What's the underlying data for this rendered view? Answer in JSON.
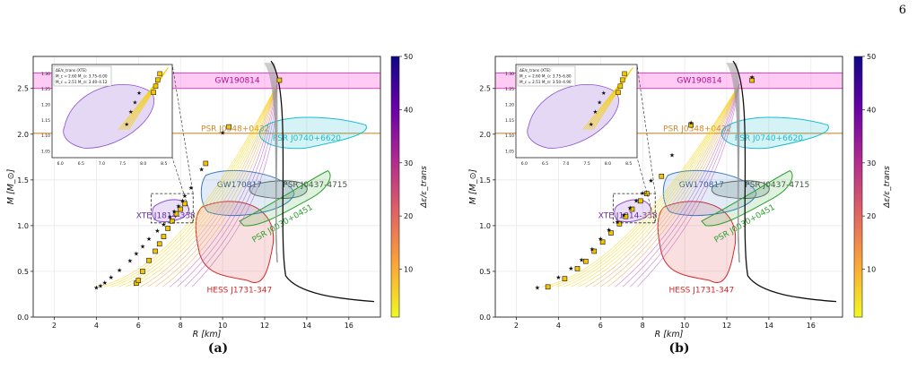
{
  "page_number": "6",
  "panels": [
    {
      "label": "(a)"
    },
    {
      "label": "(b)"
    }
  ],
  "colors": {
    "gw190814_band": "#ff66e0",
    "j0348_line": "#d08a2c",
    "j0740": "#17becf",
    "gw170817": "#3a78c2",
    "j0437": "#2ca02c",
    "j0030": "#2ca02c",
    "xte": "#8a4fd0",
    "hess": "#d62728",
    "grey_bundle": "#9a9a9a",
    "markers": "#f5c400"
  },
  "chart_data": [
    {
      "panel": "(a)",
      "type": "scatter",
      "xlabel": "R [km]",
      "ylabel": "M [M_⊙]",
      "xlim": [
        1,
        17.5
      ],
      "ylim": [
        0,
        2.85
      ],
      "xticks": [
        2,
        4,
        6,
        8,
        10,
        12,
        14,
        16
      ],
      "yticks": [
        0.0,
        0.5,
        1.0,
        1.5,
        2.0,
        2.5
      ],
      "grid": true,
      "colorbar": {
        "label": "Δε/ε_trans",
        "ticks": [
          10,
          20,
          30,
          40,
          50
        ],
        "range": [
          1,
          50
        ]
      },
      "constraints": [
        "GW190814",
        "PSR J0348+0432",
        "PSR J0740+6620",
        "GW170817",
        "PSR J0437-4715",
        "PSR J0030+0451",
        "XTE J1814-338",
        "HESS J1731-347"
      ],
      "inset": {
        "legend": [
          "ΔE/ε_trans (XTE)",
          "M_c = 2.60 M_⊙: 3.75–6.00",
          "M_c = 2.51 M_⊙: 3.40–4.12"
        ],
        "xticks": [
          6.0,
          6.5,
          7.0,
          7.5,
          8.0,
          8.5
        ],
        "yticks": [
          1.05,
          1.1,
          1.15,
          1.2,
          1.25,
          1.3
        ]
      },
      "stars": [
        [
          4.0,
          0.33
        ],
        [
          4.2,
          0.35
        ],
        [
          4.4,
          0.38
        ],
        [
          4.7,
          0.44
        ],
        [
          5.1,
          0.52
        ],
        [
          5.6,
          0.62
        ],
        [
          5.9,
          0.7
        ],
        [
          6.2,
          0.78
        ],
        [
          6.5,
          0.86
        ],
        [
          6.9,
          0.95
        ],
        [
          7.2,
          1.02
        ],
        [
          7.5,
          1.1
        ],
        [
          7.7,
          1.16
        ],
        [
          7.9,
          1.22
        ],
        [
          8.1,
          1.28
        ],
        [
          8.2,
          1.33
        ],
        [
          8.5,
          1.42
        ],
        [
          9.0,
          1.62
        ],
        [
          10.0,
          2.02
        ]
      ],
      "squares": [
        [
          5.9,
          0.37
        ],
        [
          6.0,
          0.4
        ],
        [
          6.2,
          0.5
        ],
        [
          6.5,
          0.62
        ],
        [
          6.8,
          0.72
        ],
        [
          7.0,
          0.8
        ],
        [
          7.2,
          0.88
        ],
        [
          7.4,
          0.97
        ],
        [
          7.6,
          1.05
        ],
        [
          7.8,
          1.13
        ],
        [
          8.0,
          1.18
        ],
        [
          8.2,
          1.24
        ],
        [
          9.2,
          1.68
        ],
        [
          10.3,
          2.08
        ],
        [
          12.7,
          2.59
        ]
      ]
    },
    {
      "panel": "(b)",
      "type": "scatter",
      "xlabel": "R [km]",
      "ylabel": "M [M_⊙]",
      "xlim": [
        1,
        17.5
      ],
      "ylim": [
        0,
        2.85
      ],
      "xticks": [
        2,
        4,
        6,
        8,
        10,
        12,
        14,
        16
      ],
      "yticks": [
        0.0,
        0.5,
        1.0,
        1.5,
        2.0,
        2.5
      ],
      "grid": true,
      "colorbar": {
        "label": "Δε/ε_trans",
        "ticks": [
          10,
          20,
          30,
          40,
          50
        ],
        "range": [
          1,
          50
        ]
      },
      "constraints": [
        "GW190814",
        "PSR J0348+0432",
        "PSR J0740+6620",
        "GW170817",
        "PSR J0437-4715",
        "PSR J0030+0451",
        "XTE J1814-338",
        "HESS J1731-347"
      ],
      "inset": {
        "legend": [
          "ΔE/ε_trans (XTE)",
          "M_c = 2.60 M_⊙: 3.75–6.80",
          "M_c = 2.51 M_⊙: 3.50–4.90"
        ],
        "xticks": [
          6.0,
          6.5,
          7.0,
          7.5,
          8.0,
          8.5
        ],
        "yticks": [
          1.05,
          1.1,
          1.15,
          1.2,
          1.25,
          1.3
        ]
      },
      "stars": [
        [
          3.0,
          0.33
        ],
        [
          4.0,
          0.44
        ],
        [
          4.6,
          0.54
        ],
        [
          5.1,
          0.63
        ],
        [
          5.6,
          0.75
        ],
        [
          6.0,
          0.86
        ],
        [
          6.4,
          0.96
        ],
        [
          6.8,
          1.05
        ],
        [
          7.1,
          1.12
        ],
        [
          7.4,
          1.2
        ],
        [
          7.7,
          1.28
        ],
        [
          8.0,
          1.36
        ],
        [
          8.4,
          1.5
        ],
        [
          9.4,
          1.78
        ],
        [
          10.3,
          2.13
        ],
        [
          13.2,
          2.63
        ]
      ],
      "squares": [
        [
          3.5,
          0.33
        ],
        [
          4.3,
          0.42
        ],
        [
          4.9,
          0.53
        ],
        [
          5.3,
          0.61
        ],
        [
          5.7,
          0.72
        ],
        [
          6.1,
          0.82
        ],
        [
          6.5,
          0.92
        ],
        [
          6.9,
          1.02
        ],
        [
          7.2,
          1.1
        ],
        [
          7.5,
          1.18
        ],
        [
          7.9,
          1.27
        ],
        [
          8.2,
          1.35
        ],
        [
          8.9,
          1.54
        ],
        [
          10.3,
          2.1
        ],
        [
          13.2,
          2.59
        ]
      ]
    }
  ]
}
